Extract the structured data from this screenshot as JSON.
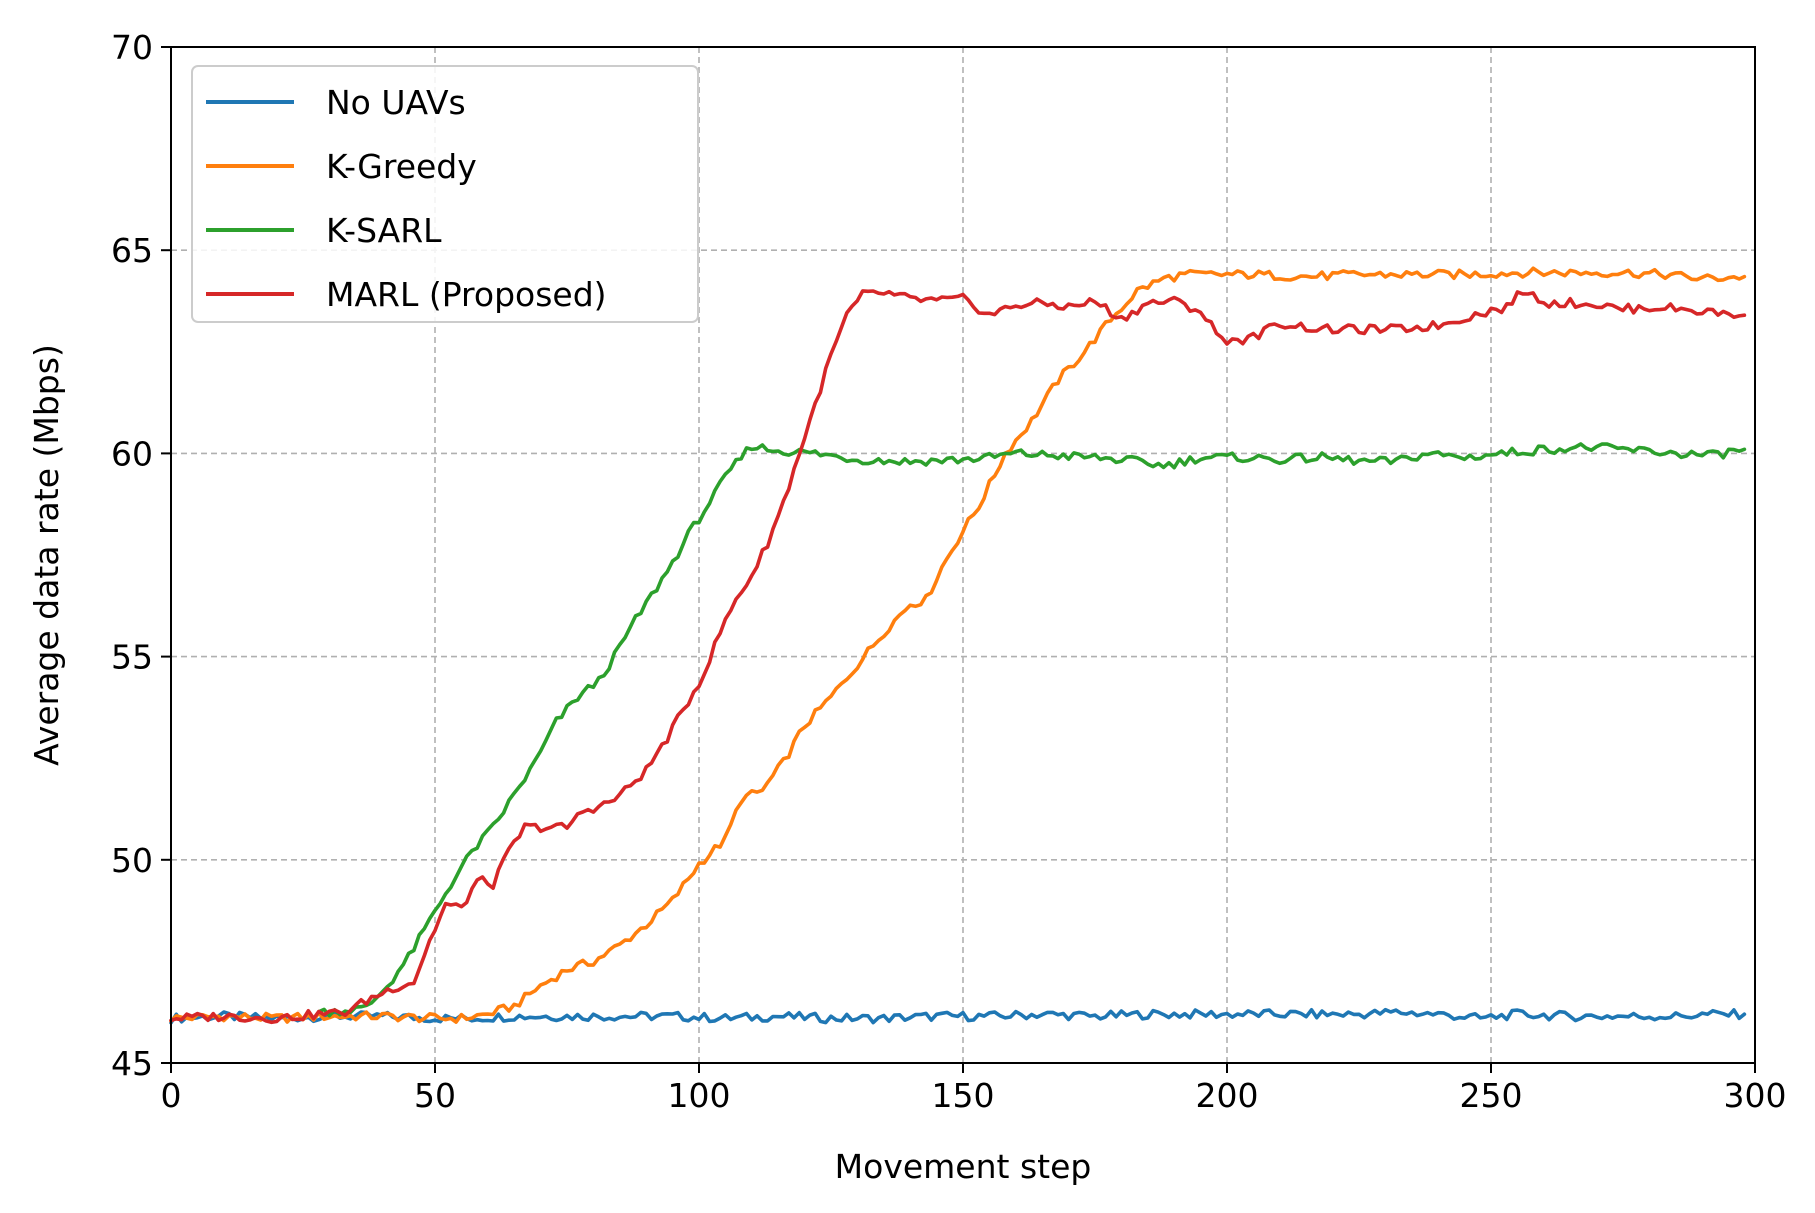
{
  "chart_data": {
    "type": "line",
    "title": "",
    "xlabel": "Movement step",
    "ylabel": "Average data rate (Mbps)",
    "xlim": [
      0,
      300
    ],
    "ylim": [
      45,
      70
    ],
    "xticks": [
      0,
      50,
      100,
      150,
      200,
      250,
      300
    ],
    "xtick_labels": [
      "0",
      "50",
      "100",
      "150",
      "200",
      "250",
      "300"
    ],
    "yticks": [
      45,
      50,
      55,
      60,
      65,
      70
    ],
    "ytick_labels": [
      "45",
      "50",
      "55",
      "60",
      "65",
      "70"
    ],
    "grid": true,
    "legend_position": "upper-left",
    "series": [
      {
        "name": "No UAVs",
        "color": "#1f77b4",
        "points": [
          [
            0,
            46.1
          ],
          [
            10,
            46.15
          ],
          [
            20,
            46.1
          ],
          [
            30,
            46.15
          ],
          [
            40,
            46.15
          ],
          [
            50,
            46.1
          ],
          [
            57,
            46.1
          ],
          [
            65,
            46.15
          ],
          [
            75,
            46.15
          ],
          [
            85,
            46.15
          ],
          [
            95,
            46.15
          ],
          [
            105,
            46.1
          ],
          [
            115,
            46.15
          ],
          [
            125,
            46.1
          ],
          [
            135,
            46.1
          ],
          [
            145,
            46.15
          ],
          [
            155,
            46.15
          ],
          [
            165,
            46.2
          ],
          [
            175,
            46.15
          ],
          [
            185,
            46.2
          ],
          [
            195,
            46.2
          ],
          [
            205,
            46.2
          ],
          [
            215,
            46.2
          ],
          [
            225,
            46.2
          ],
          [
            232,
            46.25
          ],
          [
            240,
            46.2
          ],
          [
            248,
            46.1
          ],
          [
            255,
            46.2
          ],
          [
            265,
            46.15
          ],
          [
            275,
            46.15
          ],
          [
            285,
            46.15
          ],
          [
            292,
            46.2
          ],
          [
            298,
            46.2
          ]
        ]
      },
      {
        "name": "K-Greedy",
        "color": "#ff7f0e",
        "points": [
          [
            0,
            46.1
          ],
          [
            10,
            46.15
          ],
          [
            20,
            46.1
          ],
          [
            30,
            46.15
          ],
          [
            40,
            46.15
          ],
          [
            50,
            46.1
          ],
          [
            55,
            46.1
          ],
          [
            60,
            46.2
          ],
          [
            65,
            46.4
          ],
          [
            70,
            46.9
          ],
          [
            75,
            47.3
          ],
          [
            80,
            47.5
          ],
          [
            85,
            47.9
          ],
          [
            90,
            48.4
          ],
          [
            95,
            49.0
          ],
          [
            100,
            49.9
          ],
          [
            105,
            50.5
          ],
          [
            108,
            51.5
          ],
          [
            112,
            51.7
          ],
          [
            116,
            52.4
          ],
          [
            120,
            53.3
          ],
          [
            125,
            54.0
          ],
          [
            130,
            54.8
          ],
          [
            135,
            55.6
          ],
          [
            140,
            56.3
          ],
          [
            143,
            56.4
          ],
          [
            146,
            57.2
          ],
          [
            150,
            58.1
          ],
          [
            153,
            58.7
          ],
          [
            158,
            60.0
          ],
          [
            163,
            60.8
          ],
          [
            168,
            61.8
          ],
          [
            173,
            62.5
          ],
          [
            178,
            63.3
          ],
          [
            183,
            64.0
          ],
          [
            188,
            64.3
          ],
          [
            192,
            64.4
          ],
          [
            196,
            64.4
          ],
          [
            205,
            64.4
          ],
          [
            215,
            64.35
          ],
          [
            225,
            64.4
          ],
          [
            235,
            64.4
          ],
          [
            245,
            64.4
          ],
          [
            255,
            64.45
          ],
          [
            265,
            64.45
          ],
          [
            275,
            64.45
          ],
          [
            283,
            64.4
          ],
          [
            290,
            64.3
          ],
          [
            298,
            64.35
          ]
        ]
      },
      {
        "name": "K-SARL",
        "color": "#2ca02c",
        "points": [
          [
            28,
            46.25
          ],
          [
            33,
            46.3
          ],
          [
            37,
            46.35
          ],
          [
            41,
            46.9
          ],
          [
            45,
            47.6
          ],
          [
            49,
            48.5
          ],
          [
            53,
            49.4
          ],
          [
            57,
            50.2
          ],
          [
            61,
            50.8
          ],
          [
            65,
            51.6
          ],
          [
            69,
            52.4
          ],
          [
            73,
            53.4
          ],
          [
            77,
            54.0
          ],
          [
            81,
            54.4
          ],
          [
            84,
            55.0
          ],
          [
            87,
            55.7
          ],
          [
            90,
            56.3
          ],
          [
            94,
            57.1
          ],
          [
            98,
            58.0
          ],
          [
            102,
            58.8
          ],
          [
            106,
            59.6
          ],
          [
            110,
            60.2
          ],
          [
            113,
            60.1
          ],
          [
            117,
            60.05
          ],
          [
            122,
            60.0
          ],
          [
            130,
            59.85
          ],
          [
            140,
            59.8
          ],
          [
            150,
            59.85
          ],
          [
            155,
            59.9
          ],
          [
            160,
            60.0
          ],
          [
            167,
            59.95
          ],
          [
            175,
            59.9
          ],
          [
            183,
            59.8
          ],
          [
            188,
            59.7
          ],
          [
            195,
            59.9
          ],
          [
            203,
            59.9
          ],
          [
            210,
            59.85
          ],
          [
            218,
            59.9
          ],
          [
            226,
            59.8
          ],
          [
            232,
            59.8
          ],
          [
            238,
            60.0
          ],
          [
            245,
            59.9
          ],
          [
            252,
            60.0
          ],
          [
            260,
            60.1
          ],
          [
            268,
            60.15
          ],
          [
            275,
            60.1
          ],
          [
            285,
            60.0
          ],
          [
            292,
            59.95
          ],
          [
            298,
            60.1
          ]
        ]
      },
      {
        "name": "MARL (Proposed)",
        "color": "#d62728",
        "points": [
          [
            0,
            46.1
          ],
          [
            10,
            46.15
          ],
          [
            20,
            46.1
          ],
          [
            28,
            46.2
          ],
          [
            33,
            46.25
          ],
          [
            38,
            46.6
          ],
          [
            42,
            46.85
          ],
          [
            46,
            47.0
          ],
          [
            49,
            48.0
          ],
          [
            52,
            48.9
          ],
          [
            55,
            48.8
          ],
          [
            58,
            49.5
          ],
          [
            61,
            49.4
          ],
          [
            64,
            50.2
          ],
          [
            67,
            50.8
          ],
          [
            70,
            50.8
          ],
          [
            75,
            50.8
          ],
          [
            78,
            51.2
          ],
          [
            83,
            51.4
          ],
          [
            86,
            51.7
          ],
          [
            90,
            52.2
          ],
          [
            94,
            53.0
          ],
          [
            98,
            53.9
          ],
          [
            101,
            54.6
          ],
          [
            104,
            55.6
          ],
          [
            107,
            56.4
          ],
          [
            110,
            57.0
          ],
          [
            113,
            57.8
          ],
          [
            116,
            58.8
          ],
          [
            119,
            60.0
          ],
          [
            122,
            61.2
          ],
          [
            125,
            62.4
          ],
          [
            128,
            63.4
          ],
          [
            131,
            63.9
          ],
          [
            135,
            63.95
          ],
          [
            140,
            63.8
          ],
          [
            145,
            63.75
          ],
          [
            150,
            63.8
          ],
          [
            155,
            63.4
          ],
          [
            160,
            63.65
          ],
          [
            165,
            63.7
          ],
          [
            170,
            63.6
          ],
          [
            175,
            63.75
          ],
          [
            180,
            63.3
          ],
          [
            185,
            63.7
          ],
          [
            190,
            63.75
          ],
          [
            195,
            63.5
          ],
          [
            199,
            62.8
          ],
          [
            204,
            62.8
          ],
          [
            210,
            63.2
          ],
          [
            218,
            63.05
          ],
          [
            225,
            63.05
          ],
          [
            232,
            63.05
          ],
          [
            240,
            63.15
          ],
          [
            248,
            63.45
          ],
          [
            253,
            63.6
          ],
          [
            256,
            64.0
          ],
          [
            261,
            63.7
          ],
          [
            268,
            63.7
          ],
          [
            275,
            63.55
          ],
          [
            282,
            63.6
          ],
          [
            290,
            63.5
          ],
          [
            298,
            63.4
          ]
        ]
      }
    ]
  }
}
